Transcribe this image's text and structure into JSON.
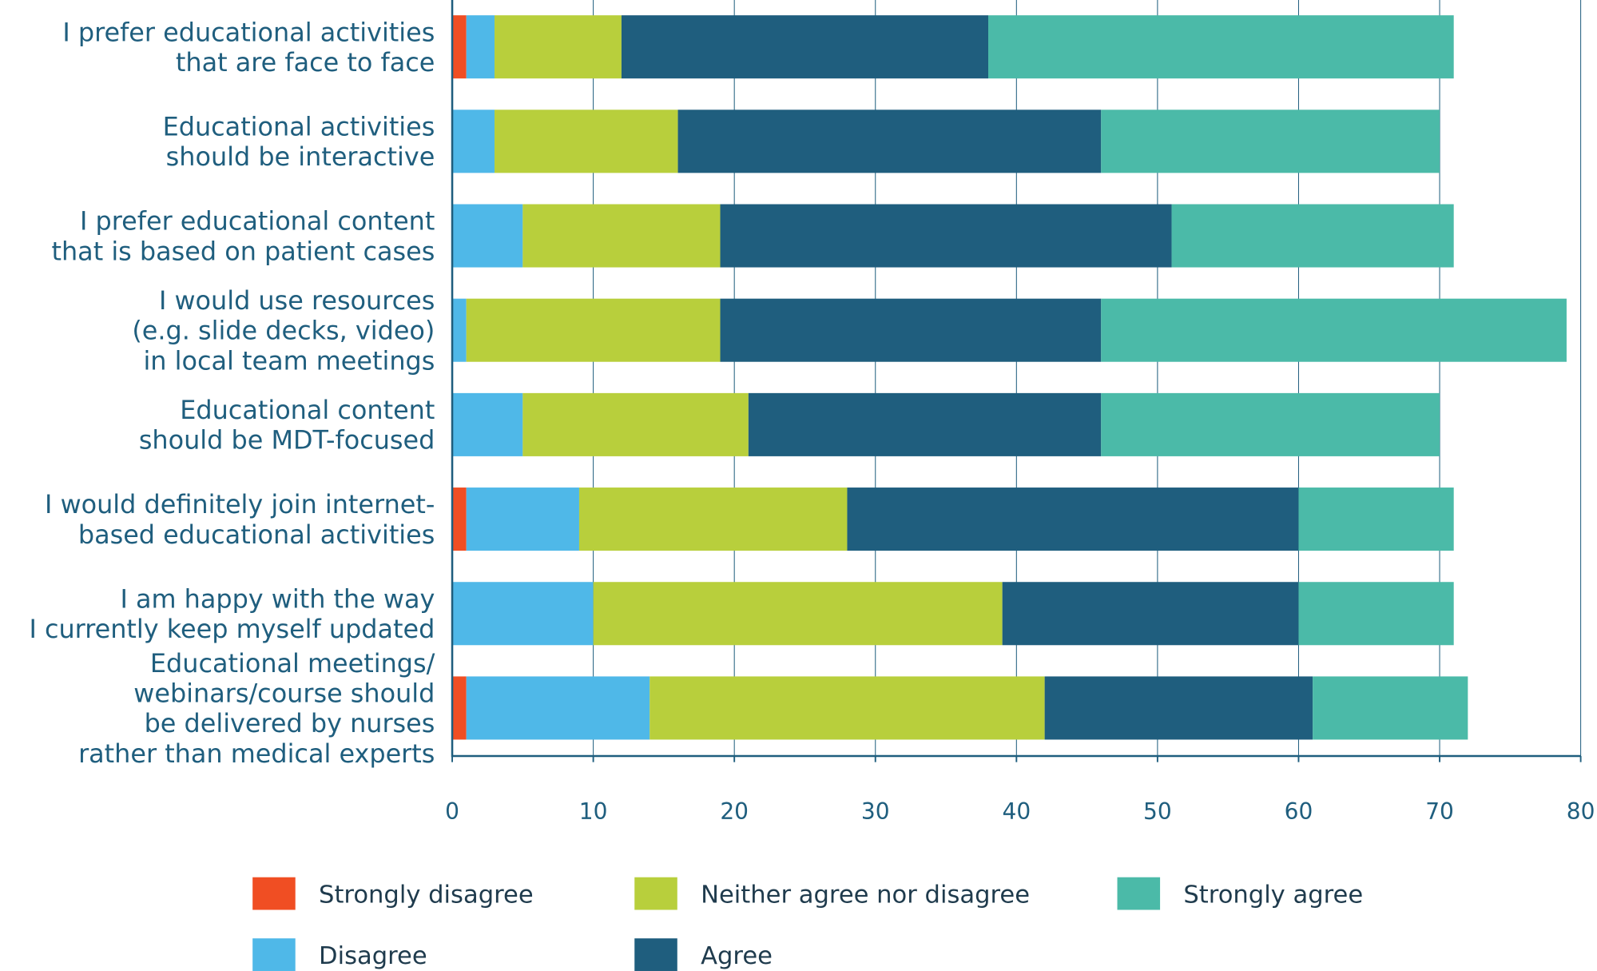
{
  "chart_data": {
    "type": "bar",
    "orientation": "horizontal",
    "stacked": true,
    "categories": [
      [
        "I prefer educational activities",
        "that are face to face"
      ],
      [
        "Educational activities",
        "should be interactive"
      ],
      [
        "I prefer educational content",
        "that is based on patient cases"
      ],
      [
        "I would use resources",
        "(e.g. slide decks, video)",
        "in local team meetings"
      ],
      [
        "Educational content",
        "should be MDT-focused"
      ],
      [
        "I would definitely join internet-",
        "based educational activities"
      ],
      [
        "I am happy with the way",
        "I currently keep myself updated"
      ],
      [
        "Educational meetings/",
        "webinars/course should",
        "be delivered by nurses",
        "rather than medical experts"
      ]
    ],
    "series": [
      {
        "name": "Strongly disagree",
        "color": "#f04e23",
        "values": [
          1,
          0,
          0,
          0,
          0,
          1,
          0,
          1
        ]
      },
      {
        "name": "Disagree",
        "color": "#4fb8e8",
        "values": [
          2,
          3,
          5,
          1,
          5,
          8,
          10,
          13
        ]
      },
      {
        "name": "Neither agree nor disagree",
        "color": "#b8cf3c",
        "values": [
          9,
          13,
          14,
          18,
          16,
          19,
          29,
          28
        ]
      },
      {
        "name": "Agree",
        "color": "#1f5e7e",
        "values": [
          26,
          30,
          32,
          27,
          25,
          32,
          21,
          19
        ]
      },
      {
        "name": "Strongly agree",
        "color": "#4bbaa8",
        "values": [
          33,
          24,
          20,
          33,
          24,
          11,
          11,
          11
        ]
      }
    ],
    "xlim": [
      0,
      80
    ],
    "xticks": [
      "0",
      "10",
      "20",
      "30",
      "40",
      "50",
      "60",
      "70",
      "80"
    ],
    "grid": "vertical",
    "legend_position": "bottom",
    "legend_order": [
      "Strongly disagree",
      "Neither agree nor disagree",
      "Strongly agree",
      "Disagree",
      "Agree"
    ]
  }
}
